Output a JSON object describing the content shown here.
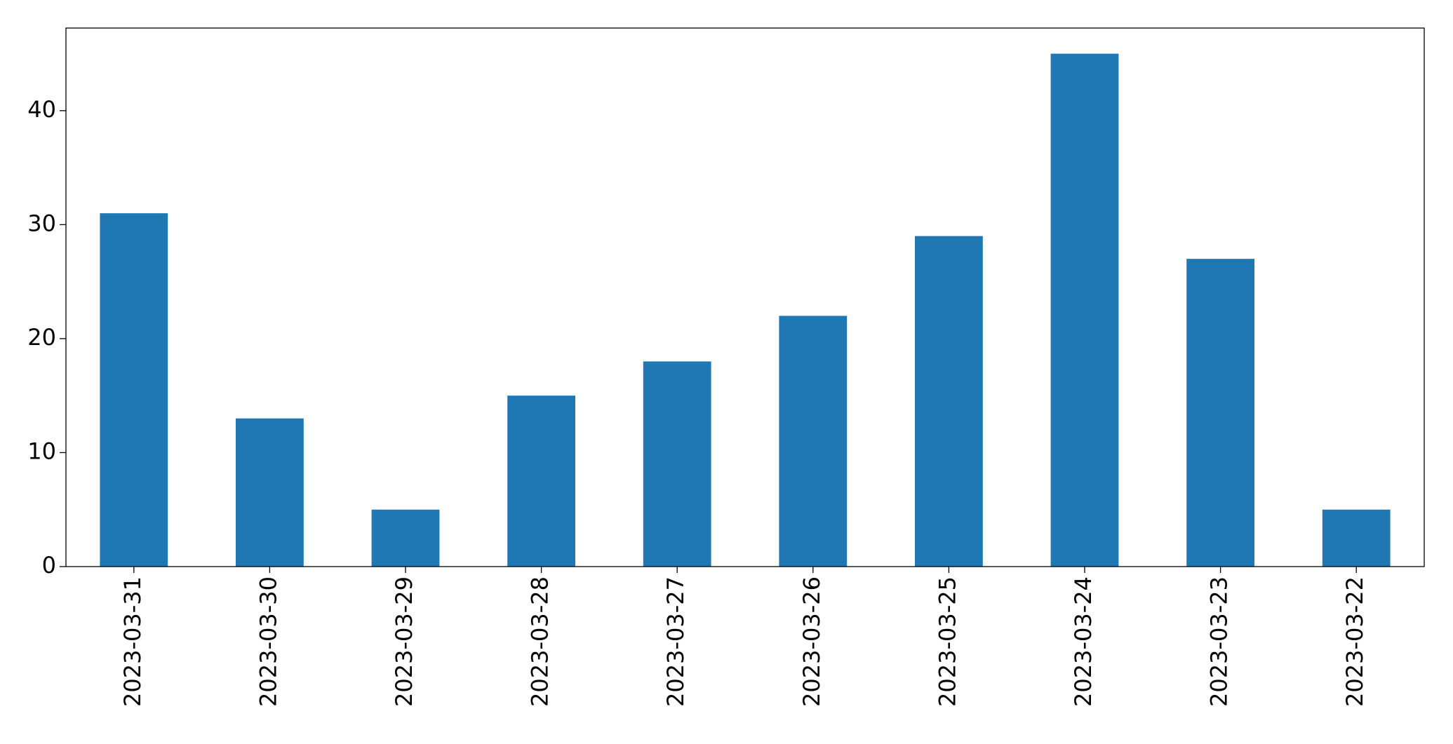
{
  "chart_data": {
    "type": "bar",
    "categories": [
      "2023-03-31",
      "2023-03-30",
      "2023-03-29",
      "2023-03-28",
      "2023-03-27",
      "2023-03-26",
      "2023-03-25",
      "2023-03-24",
      "2023-03-23",
      "2023-03-22"
    ],
    "values": [
      31,
      13,
      5,
      15,
      18,
      22,
      29,
      45,
      27,
      5
    ],
    "color": "#1f77b4",
    "ylim": [
      0,
      47.25
    ],
    "yticks": [
      0,
      10,
      20,
      30,
      40
    ],
    "grid": false
  }
}
